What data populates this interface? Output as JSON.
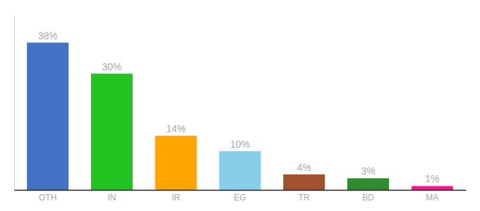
{
  "chart_data": {
    "type": "bar",
    "categories": [
      "OTH",
      "IN",
      "IR",
      "EG",
      "TR",
      "BD",
      "MA"
    ],
    "values": [
      38,
      30,
      14,
      10,
      4,
      3,
      1
    ],
    "value_labels": [
      "38%",
      "30%",
      "14%",
      "10%",
      "4%",
      "3%",
      "1%"
    ],
    "colors": [
      "#4472C4",
      "#22C422",
      "#FFA500",
      "#87CEEB",
      "#A0522D",
      "#2E8B2E",
      "#FF1493"
    ],
    "ylim": [
      0,
      45
    ],
    "data_labels": true,
    "tick_labels": "x",
    "grid": false
  }
}
